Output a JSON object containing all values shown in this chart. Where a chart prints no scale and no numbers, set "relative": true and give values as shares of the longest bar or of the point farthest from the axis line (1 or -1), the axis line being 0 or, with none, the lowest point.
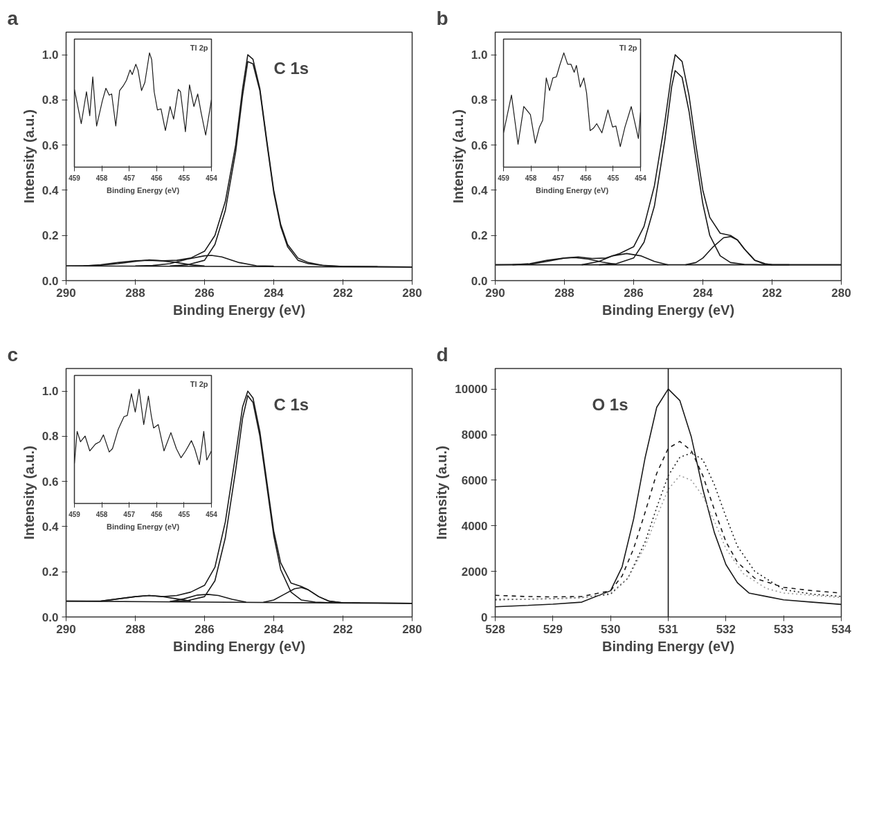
{
  "chart_data": [
    {
      "type": "line",
      "title": "a",
      "xlabel": "Binding Energy (eV)",
      "ylabel": "Intensity (a.u.)",
      "annotations": [
        "C 1s"
      ],
      "xlim": [
        290,
        280
      ],
      "xticks": [
        290,
        288,
        286,
        284,
        282,
        280
      ],
      "ylim": [
        0,
        1.1
      ],
      "yticks": [
        {
          "value": 0,
          "label": "0.0"
        },
        {
          "value": 0.2,
          "label": "0.2"
        },
        {
          "value": 0.4,
          "label": "0.4"
        },
        {
          "value": 0.6,
          "label": "0.6"
        },
        {
          "value": 0.8,
          "label": "0.8"
        },
        {
          "value": 1.0,
          "label": "1.0"
        }
      ],
      "series": [
        {
          "color": "#1a1a1a",
          "x": [
            290,
            289.5,
            289,
            288.5,
            288,
            287.6,
            287.2,
            286.8,
            286.4,
            286,
            285.7,
            285.4,
            285.1,
            284.9,
            284.75,
            284.6,
            284.4,
            284.2,
            284,
            283.8,
            283.6,
            283.3,
            283,
            282.6,
            282,
            281,
            280
          ],
          "values": [
            0.065,
            0.066,
            0.068,
            0.075,
            0.085,
            0.092,
            0.088,
            0.09,
            0.1,
            0.13,
            0.2,
            0.35,
            0.6,
            0.85,
            1.0,
            0.98,
            0.85,
            0.62,
            0.4,
            0.25,
            0.16,
            0.1,
            0.08,
            0.068,
            0.063,
            0.062,
            0.06
          ]
        },
        {
          "color": "#1a1a1a",
          "x": [
            287,
            286.5,
            286,
            285.7,
            285.4,
            285.1,
            284.9,
            284.75,
            284.6,
            284.4,
            284.2,
            284,
            283.8,
            283.6,
            283.3,
            283,
            282.5,
            282,
            281
          ],
          "values": [
            0.065,
            0.07,
            0.09,
            0.16,
            0.31,
            0.57,
            0.82,
            0.97,
            0.96,
            0.84,
            0.61,
            0.39,
            0.24,
            0.15,
            0.09,
            0.075,
            0.066,
            0.063,
            0.062
          ]
        },
        {
          "color": "#1a1a1a",
          "x": [
            288,
            287.5,
            287,
            286.5,
            286,
            285.8,
            285.5,
            285,
            284.5,
            284
          ],
          "values": [
            0.065,
            0.067,
            0.075,
            0.095,
            0.11,
            0.112,
            0.105,
            0.08,
            0.066,
            0.064
          ]
        },
        {
          "color": "#1a1a1a",
          "x": [
            289.5,
            289,
            288.5,
            288,
            287.6,
            287.2,
            286.8,
            286.4,
            286
          ],
          "values": [
            0.065,
            0.07,
            0.08,
            0.088,
            0.09,
            0.087,
            0.08,
            0.07,
            0.065
          ]
        },
        {
          "color": "#1a1a1a",
          "x": [
            290,
            280
          ],
          "values": [
            0.065,
            0.06
          ]
        }
      ]
    },
    {
      "type": "line",
      "relative": true,
      "tick_labels": "x",
      "title": "Tl 2p",
      "xlabel": "Binding Energy (eV)",
      "xlim": [
        459,
        454
      ],
      "xticks": [
        459,
        458,
        457,
        456,
        455,
        454
      ],
      "series": [
        {
          "color": "#1a1a1a",
          "x": [
            459.0,
            458.75,
            458.56,
            458.44,
            458.33,
            458.19,
            457.98,
            457.85,
            457.73,
            457.64,
            457.49,
            457.35,
            457.22,
            457.1,
            456.97,
            456.89,
            456.76,
            456.68,
            456.55,
            456.43,
            456.26,
            456.18,
            456.09,
            455.97,
            455.84,
            455.68,
            455.51,
            455.38,
            455.21,
            455.13,
            454.95,
            454.8,
            454.64,
            454.5,
            454.38,
            454.21,
            454.0
          ],
          "values": [
            0.68,
            0.38,
            0.66,
            0.45,
            0.79,
            0.36,
            0.58,
            0.69,
            0.63,
            0.64,
            0.36,
            0.67,
            0.71,
            0.76,
            0.85,
            0.81,
            0.9,
            0.85,
            0.67,
            0.74,
            1.0,
            0.94,
            0.66,
            0.5,
            0.51,
            0.32,
            0.53,
            0.42,
            0.68,
            0.66,
            0.31,
            0.72,
            0.53,
            0.64,
            0.48,
            0.28,
            0.59
          ]
        }
      ]
    },
    {
      "type": "line",
      "title": "b",
      "xlabel": "Binding Energy (eV)",
      "ylabel": "Intensity (a.u.)",
      "xlim": [
        290,
        280
      ],
      "xticks": [
        290,
        288,
        286,
        284,
        282,
        280
      ],
      "ylim": [
        0,
        1.1
      ],
      "yticks": [
        {
          "value": 0,
          "label": "0.0"
        },
        {
          "value": 0.2,
          "label": "0.2"
        },
        {
          "value": 0.4,
          "label": "0.4"
        },
        {
          "value": 0.6,
          "label": "0.6"
        },
        {
          "value": 0.8,
          "label": "0.8"
        },
        {
          "value": 1.0,
          "label": "1.0"
        }
      ],
      "series": [
        {
          "color": "#1a1a1a",
          "x": [
            290,
            289,
            288.5,
            288,
            287.6,
            287.2,
            286.8,
            286.4,
            286,
            285.7,
            285.4,
            285.1,
            284.9,
            284.8,
            284.6,
            284.4,
            284.2,
            284,
            283.8,
            283.5,
            283.2,
            283,
            282.8,
            282.5,
            282.2,
            282,
            281,
            280
          ],
          "values": [
            0.07,
            0.072,
            0.085,
            0.1,
            0.105,
            0.098,
            0.1,
            0.12,
            0.15,
            0.24,
            0.42,
            0.7,
            0.92,
            1.0,
            0.97,
            0.82,
            0.6,
            0.4,
            0.28,
            0.21,
            0.2,
            0.18,
            0.14,
            0.09,
            0.075,
            0.07,
            0.07,
            0.07
          ]
        },
        {
          "color": "#1a1a1a",
          "x": [
            287,
            286.5,
            286,
            285.7,
            285.4,
            285.1,
            284.9,
            284.8,
            284.6,
            284.4,
            284.2,
            284,
            283.8,
            283.5,
            283.2,
            282.8,
            282.3,
            281.5
          ],
          "values": [
            0.07,
            0.075,
            0.1,
            0.17,
            0.33,
            0.62,
            0.86,
            0.93,
            0.9,
            0.75,
            0.54,
            0.34,
            0.2,
            0.11,
            0.08,
            0.072,
            0.07,
            0.07
          ]
        },
        {
          "color": "#1a1a1a",
          "x": [
            284.5,
            284.2,
            284,
            283.7,
            283.4,
            283.2,
            283,
            282.8,
            282.5,
            282.2,
            282
          ],
          "values": [
            0.07,
            0.08,
            0.1,
            0.15,
            0.19,
            0.195,
            0.18,
            0.14,
            0.09,
            0.072,
            0.07
          ]
        },
        {
          "color": "#1a1a1a",
          "x": [
            287.5,
            287,
            286.6,
            286.2,
            285.8,
            285.4,
            285
          ],
          "values": [
            0.07,
            0.085,
            0.11,
            0.12,
            0.11,
            0.085,
            0.07
          ]
        },
        {
          "color": "#1a1a1a",
          "x": [
            289.5,
            289,
            288.5,
            288,
            287.7,
            287.3,
            286.9,
            286.5
          ],
          "values": [
            0.07,
            0.075,
            0.09,
            0.1,
            0.102,
            0.095,
            0.082,
            0.072
          ]
        },
        {
          "color": "#1a1a1a",
          "x": [
            290,
            280
          ],
          "values": [
            0.07,
            0.07
          ]
        }
      ]
    },
    {
      "type": "line",
      "relative": true,
      "tick_labels": "x",
      "title": "Tl 2p",
      "xlabel": "Binding Energy (eV)",
      "xlim": [
        459,
        454
      ],
      "xticks": [
        459,
        458,
        457,
        456,
        455,
        454
      ],
      "series": [
        {
          "color": "#1a1a1a",
          "x": [
            459.0,
            458.71,
            458.47,
            458.26,
            458.02,
            457.84,
            457.69,
            457.57,
            457.44,
            457.32,
            457.2,
            457.07,
            456.95,
            456.8,
            456.66,
            456.54,
            456.42,
            456.34,
            456.2,
            456.07,
            455.97,
            455.84,
            455.72,
            455.6,
            455.41,
            455.19,
            455.02,
            454.9,
            454.74,
            454.57,
            454.34,
            454.2,
            454.08,
            454.0
          ],
          "values": [
            0.3,
            0.63,
            0.2,
            0.53,
            0.46,
            0.21,
            0.35,
            0.41,
            0.78,
            0.67,
            0.78,
            0.79,
            0.89,
            1.0,
            0.9,
            0.9,
            0.83,
            0.89,
            0.7,
            0.78,
            0.65,
            0.32,
            0.34,
            0.38,
            0.3,
            0.5,
            0.35,
            0.36,
            0.18,
            0.35,
            0.53,
            0.38,
            0.25,
            0.48
          ]
        }
      ]
    },
    {
      "type": "line",
      "title": "c",
      "xlabel": "Binding Energy (eV)",
      "ylabel": "Intensity (a.u.)",
      "annotations": [
        "C 1s"
      ],
      "xlim": [
        290,
        280
      ],
      "xticks": [
        290,
        288,
        286,
        284,
        282,
        280
      ],
      "ylim": [
        0,
        1.1
      ],
      "yticks": [
        {
          "value": 0,
          "label": "0.0"
        },
        {
          "value": 0.2,
          "label": "0.2"
        },
        {
          "value": 0.4,
          "label": "0.4"
        },
        {
          "value": 0.6,
          "label": "0.6"
        },
        {
          "value": 0.8,
          "label": "0.8"
        },
        {
          "value": 1.0,
          "label": "1.0"
        }
      ],
      "series": [
        {
          "color": "#1a1a1a",
          "x": [
            290,
            289,
            288.5,
            288,
            287.6,
            287.2,
            286.8,
            286.4,
            286,
            285.7,
            285.4,
            285.1,
            284.9,
            284.75,
            284.6,
            284.4,
            284.2,
            284,
            283.8,
            283.5,
            283.2,
            283,
            282.7,
            282.4,
            282,
            281,
            280
          ],
          "values": [
            0.07,
            0.07,
            0.08,
            0.09,
            0.095,
            0.09,
            0.095,
            0.11,
            0.14,
            0.22,
            0.42,
            0.72,
            0.93,
            1.0,
            0.97,
            0.82,
            0.6,
            0.38,
            0.24,
            0.15,
            0.135,
            0.12,
            0.09,
            0.07,
            0.063,
            0.062,
            0.06
          ]
        },
        {
          "color": "#1a1a1a",
          "x": [
            287,
            286.5,
            286,
            285.7,
            285.4,
            285.1,
            284.9,
            284.75,
            284.6,
            284.4,
            284.2,
            284,
            283.8,
            283.5,
            283.2,
            282.8,
            282.3,
            281.5
          ],
          "values": [
            0.068,
            0.072,
            0.09,
            0.16,
            0.35,
            0.65,
            0.88,
            0.98,
            0.95,
            0.8,
            0.58,
            0.36,
            0.21,
            0.11,
            0.075,
            0.066,
            0.063,
            0.062
          ]
        },
        {
          "color": "#1a1a1a",
          "x": [
            284.3,
            284,
            283.7,
            283.4,
            283.2,
            283,
            282.7,
            282.4,
            282
          ],
          "values": [
            0.065,
            0.075,
            0.1,
            0.125,
            0.13,
            0.12,
            0.09,
            0.07,
            0.063
          ]
        },
        {
          "color": "#1a1a1a",
          "x": [
            287,
            286.6,
            286.2,
            285.9,
            285.6,
            285.2,
            284.8
          ],
          "values": [
            0.068,
            0.08,
            0.097,
            0.1,
            0.095,
            0.078,
            0.066
          ]
        },
        {
          "color": "#1a1a1a",
          "x": [
            289,
            288.5,
            288,
            287.6,
            287.2,
            286.8,
            286.4
          ],
          "values": [
            0.07,
            0.08,
            0.09,
            0.095,
            0.09,
            0.08,
            0.07
          ]
        },
        {
          "color": "#1a1a1a",
          "x": [
            290,
            280
          ],
          "values": [
            0.07,
            0.06
          ]
        }
      ]
    },
    {
      "type": "line",
      "relative": true,
      "tick_labels": "x",
      "title": "Tl 2p",
      "xlabel": "Binding Energy (eV)",
      "xlim": [
        459,
        454
      ],
      "xticks": [
        459,
        458,
        457,
        456,
        455,
        454
      ],
      "series": [
        {
          "color": "#1a1a1a",
          "x": [
            459.0,
            458.9,
            458.78,
            458.61,
            458.44,
            458.23,
            458.07,
            457.94,
            457.73,
            457.61,
            457.4,
            457.19,
            457.07,
            456.92,
            456.78,
            456.64,
            456.47,
            456.3,
            456.19,
            456.11,
            455.94,
            455.73,
            455.48,
            455.28,
            455.11,
            454.94,
            454.73,
            454.61,
            454.44,
            454.28,
            454.17,
            454.0
          ],
          "values": [
            0.35,
            0.63,
            0.54,
            0.59,
            0.46,
            0.52,
            0.54,
            0.6,
            0.45,
            0.48,
            0.65,
            0.76,
            0.77,
            0.96,
            0.8,
            1.0,
            0.69,
            0.94,
            0.76,
            0.66,
            0.69,
            0.46,
            0.62,
            0.48,
            0.4,
            0.46,
            0.55,
            0.48,
            0.34,
            0.63,
            0.38,
            0.46
          ]
        }
      ]
    },
    {
      "type": "line",
      "title": "d",
      "xlabel": "Binding Energy (eV)",
      "ylabel": "Intensity (a.u.)",
      "annotations": [
        "O 1s"
      ],
      "xlim": [
        528,
        534
      ],
      "xticks": [
        528,
        529,
        530,
        531,
        532,
        533,
        534
      ],
      "ylim": [
        0,
        10900
      ],
      "yticks": [
        0,
        2000,
        4000,
        6000,
        8000,
        10000
      ],
      "series": [
        {
          "color": "#1a1a1a",
          "line_style": "solid",
          "x": [
            528,
            528.5,
            529,
            529.5,
            530,
            530.2,
            530.4,
            530.6,
            530.8,
            531,
            531.2,
            531.4,
            531.6,
            531.8,
            532,
            532.2,
            532.4,
            532.7,
            533,
            533.5,
            534
          ],
          "values": [
            450,
            500,
            560,
            650,
            1150,
            2200,
            4300,
            7000,
            9200,
            10000,
            9500,
            7900,
            5600,
            3700,
            2300,
            1500,
            1050,
            900,
            750,
            650,
            550
          ]
        },
        {
          "color": "#1a1a1a",
          "line_style": "dashed",
          "x": [
            528,
            528.5,
            529,
            529.5,
            530,
            530.2,
            530.4,
            530.6,
            530.8,
            531,
            531.2,
            531.4,
            531.6,
            531.8,
            532,
            532.2,
            532.5,
            533,
            533.5,
            534
          ],
          "values": [
            950,
            900,
            880,
            900,
            1150,
            1800,
            3000,
            4600,
            6300,
            7400,
            7700,
            7300,
            6200,
            4700,
            3300,
            2400,
            1700,
            1300,
            1150,
            1050
          ]
        },
        {
          "color": "#1a1a1a",
          "line_style": "dotted",
          "x": [
            528,
            528.5,
            529,
            529.5,
            530,
            530.3,
            530.6,
            530.8,
            531,
            531.2,
            531.4,
            531.6,
            531.8,
            532,
            532.2,
            532.5,
            533,
            533.5,
            534
          ],
          "values": [
            750,
            780,
            800,
            850,
            1000,
            1700,
            3300,
            4800,
            6200,
            7000,
            7200,
            6900,
            5800,
            4400,
            3100,
            2000,
            1200,
            1000,
            900
          ]
        },
        {
          "color": "#9a9a9a",
          "line_style": "dotted",
          "x": [
            528,
            528.5,
            529,
            529.5,
            530,
            530.3,
            530.6,
            530.8,
            531,
            531.2,
            531.4,
            531.6,
            531.8,
            532,
            532.3,
            532.7,
            533,
            533.5,
            534
          ],
          "values": [
            800,
            780,
            800,
            850,
            1050,
            1700,
            3100,
            4400,
            5600,
            6200,
            6000,
            5300,
            4200,
            3000,
            1900,
            1250,
            1050,
            950,
            850
          ]
        }
      ],
      "ref_lines": [
        {
          "axis": "x",
          "value": 531,
          "color": "#1a1a1a",
          "line_style": "solid"
        }
      ]
    }
  ]
}
